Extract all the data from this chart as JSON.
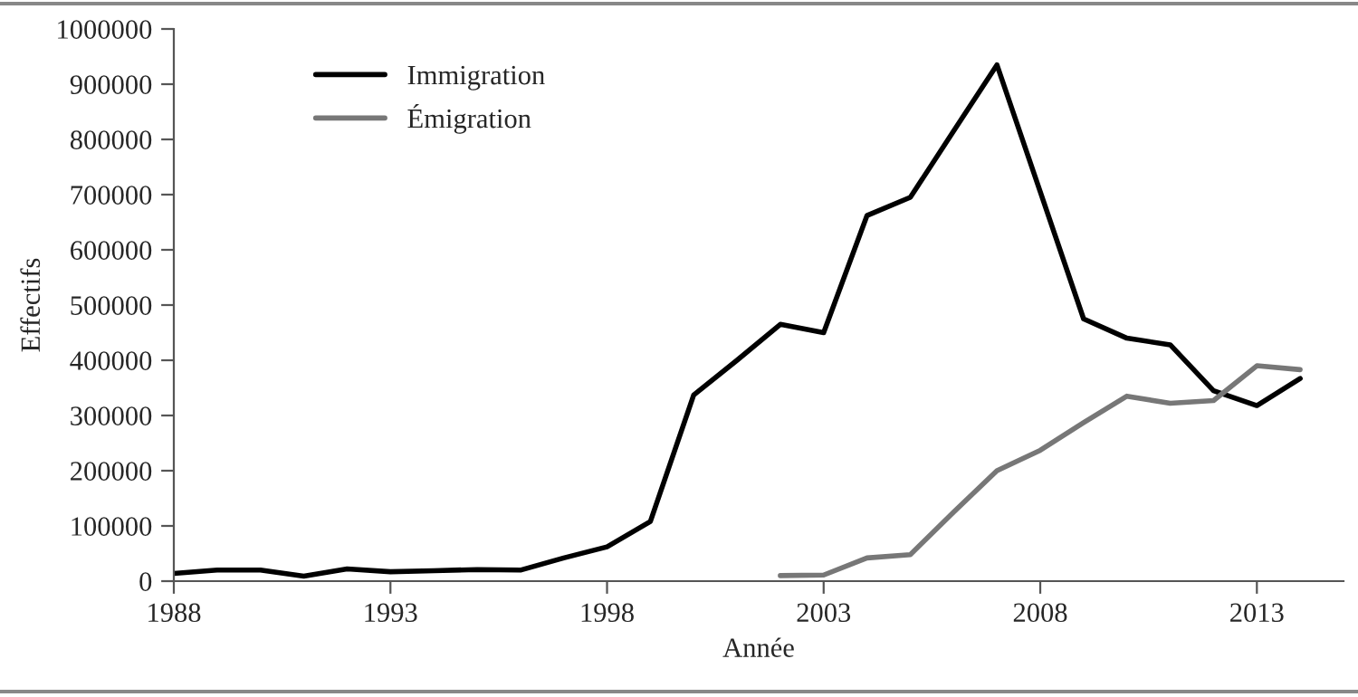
{
  "chart_data": {
    "type": "line",
    "xlabel": "Année",
    "ylabel": "Effectifs",
    "xlim": [
      1988,
      2015
    ],
    "xticks": [
      1988,
      1993,
      1998,
      2003,
      2008,
      2013
    ],
    "ylim": [
      0,
      1000000
    ],
    "yticks": [
      0,
      100000,
      200000,
      300000,
      400000,
      500000,
      600000,
      700000,
      800000,
      900000,
      1000000
    ],
    "grid": false,
    "legend": "top left",
    "marker": "none",
    "line_style": "solid",
    "series": [
      {
        "name": "Immigration",
        "color": "#000000",
        "x": [
          1988,
          1989,
          1990,
          1991,
          1992,
          1993,
          1994,
          1995,
          1996,
          1997,
          1998,
          1999,
          2000,
          2001,
          2002,
          2003,
          2004,
          2005,
          2006,
          2007,
          2008,
          2009,
          2010,
          2011,
          2012,
          2013,
          2014
        ],
        "values": [
          14000,
          20000,
          20000,
          9000,
          22000,
          17000,
          19000,
          21000,
          20000,
          42000,
          62000,
          108000,
          337000,
          400000,
          465000,
          450000,
          662000,
          695000,
          815000,
          935000,
          705000,
          475000,
          440000,
          428000,
          345000,
          318000,
          367000
        ]
      },
      {
        "name": "Émigration",
        "color": "#777777",
        "x": [
          2002,
          2003,
          2004,
          2005,
          2006,
          2007,
          2008,
          2009,
          2010,
          2011,
          2012,
          2013,
          2014
        ],
        "values": [
          10000,
          11000,
          42000,
          48000,
          125000,
          200000,
          237000,
          287000,
          335000,
          322000,
          327000,
          390000,
          383000
        ]
      }
    ]
  }
}
